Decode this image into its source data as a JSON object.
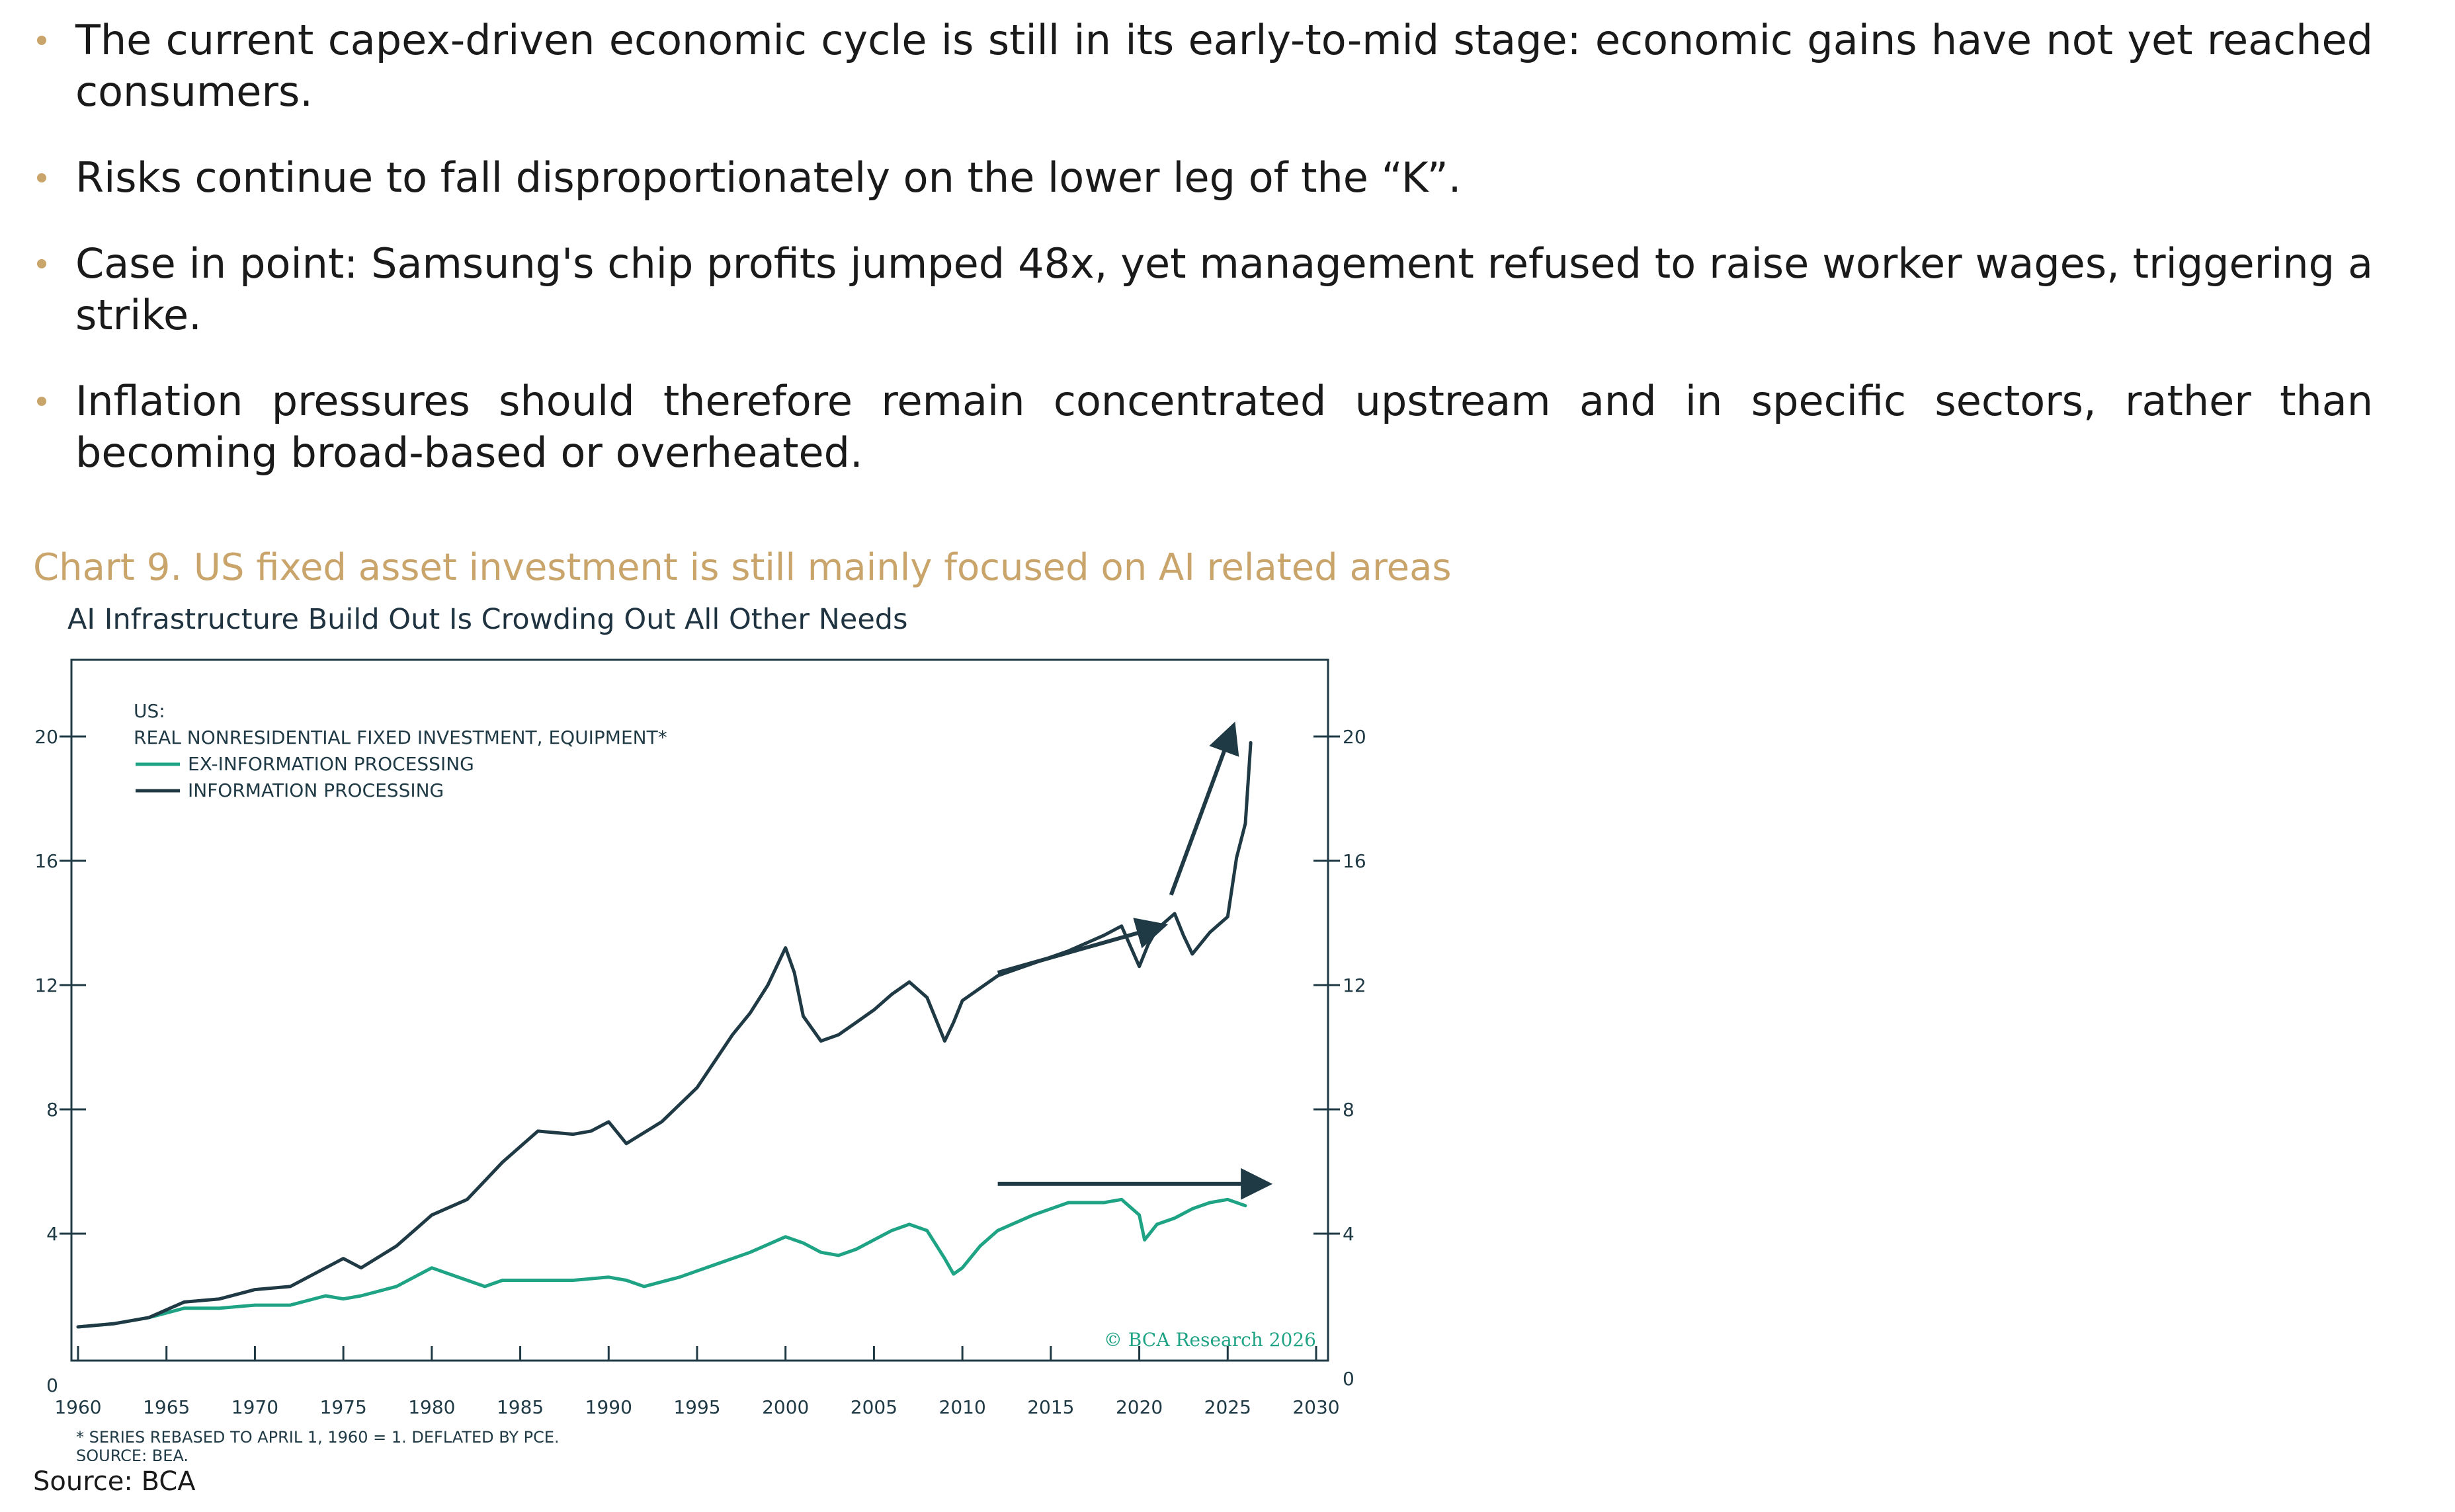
{
  "bullets": [
    "The current capex-driven economic cycle is still in its early-to-mid stage: economic gains have not yet reached consumers.",
    "Risks continue to fall disproportionately on the lower leg of the “K”.",
    "Case in point: Samsung's chip profits jumped 48x, yet management refused to raise worker wages, triggering a strike.",
    "Inflation pressures should therefore remain concentrated upstream and in specific sectors, rather than becoming broad-based or overheated."
  ],
  "caption": "Chart 9. US fixed asset investment is still mainly focused on AI related areas",
  "source": "Source: BCA",
  "colors": {
    "accent": "#c9a56b",
    "info_line": "#1f3a45",
    "ex_info_line": "#1fa385",
    "text": "#1a1a1a"
  },
  "chart_data": {
    "type": "line",
    "title": "AI Infrastructure Build Out Is Crowding Out All Other Needs",
    "legend_title": "US:",
    "legend_subtitle": "REAL NONRESIDENTIAL FIXED INVESTMENT, EQUIPMENT*",
    "legend_placement": "top-left",
    "xlim": [
      1960,
      2030
    ],
    "ylim": [
      0,
      20
    ],
    "x_ticks": [
      1960,
      1965,
      1970,
      1975,
      1980,
      1985,
      1990,
      1995,
      2000,
      2005,
      2010,
      2015,
      2020,
      2025,
      2030
    ],
    "y_ticks": [
      0,
      4,
      8,
      12,
      16,
      20
    ],
    "grid": false,
    "watermark": "© BCA Research 2026",
    "footnote_1": "* SERIES REBASED TO APRIL 1, 1960 = 1. DEFLATED BY PCE.",
    "footnote_2": "SOURCE: BEA.",
    "series": [
      {
        "name": "EX-INFORMATION PROCESSING",
        "color": "#1fa385",
        "x": [
          1960,
          1962,
          1964,
          1966,
          1968,
          1970,
          1972,
          1974,
          1975,
          1976,
          1978,
          1980,
          1981,
          1982,
          1983,
          1984,
          1986,
          1988,
          1990,
          1991,
          1992,
          1994,
          1996,
          1998,
          2000,
          2001,
          2002,
          2003,
          2004,
          2006,
          2007,
          2008,
          2009,
          2009.5,
          2010,
          2011,
          2012,
          2014,
          2016,
          2018,
          2019,
          2020,
          2020.3,
          2021,
          2022,
          2023,
          2024,
          2025,
          2026
        ],
        "y": [
          1.0,
          1.1,
          1.3,
          1.6,
          1.6,
          1.7,
          1.7,
          2.0,
          1.9,
          2.0,
          2.3,
          2.9,
          2.7,
          2.5,
          2.3,
          2.5,
          2.5,
          2.5,
          2.6,
          2.5,
          2.3,
          2.6,
          3.0,
          3.4,
          3.9,
          3.7,
          3.4,
          3.3,
          3.5,
          4.1,
          4.3,
          4.1,
          3.2,
          2.7,
          2.9,
          3.6,
          4.1,
          4.6,
          5.0,
          5.0,
          5.1,
          4.6,
          3.8,
          4.3,
          4.5,
          4.8,
          5.0,
          5.1,
          4.9
        ]
      },
      {
        "name": "INFORMATION PROCESSING",
        "color": "#1f3a45",
        "x": [
          1960,
          1962,
          1964,
          1966,
          1968,
          1970,
          1972,
          1974,
          1975,
          1976,
          1978,
          1980,
          1982,
          1983,
          1984,
          1986,
          1988,
          1989,
          1990,
          1991,
          1993,
          1995,
          1997,
          1998,
          1999,
          2000,
          2000.5,
          2001,
          2002,
          2003,
          2004,
          2005,
          2006,
          2007,
          2008,
          2009,
          2009.5,
          2010,
          2011,
          2012,
          2014,
          2016,
          2018,
          2019,
          2020,
          2020.5,
          2021,
          2022,
          2022.5,
          2023,
          2024,
          2025,
          2025.5,
          2026,
          2026.3
        ],
        "y": [
          1.0,
          1.1,
          1.3,
          1.8,
          1.9,
          2.2,
          2.3,
          2.9,
          3.2,
          2.9,
          3.6,
          4.6,
          5.1,
          5.7,
          6.3,
          7.3,
          7.2,
          7.3,
          7.6,
          6.9,
          7.6,
          8.7,
          10.4,
          11.1,
          12.0,
          13.2,
          12.4,
          11.0,
          10.2,
          10.4,
          10.8,
          11.2,
          11.7,
          12.1,
          11.6,
          10.2,
          10.8,
          11.5,
          11.9,
          12.3,
          12.7,
          13.1,
          13.6,
          13.9,
          12.6,
          13.3,
          13.8,
          14.3,
          13.6,
          13.0,
          13.7,
          14.2,
          16.1,
          17.2,
          19.8
        ]
      }
    ],
    "annotations": [
      {
        "type": "arrow",
        "color": "#1f3a45",
        "from": [
          2012,
          12.4
        ],
        "to": [
          2021.3,
          13.9
        ]
      },
      {
        "type": "arrow",
        "color": "#1f3a45",
        "from": [
          2021.8,
          14.9
        ],
        "to": [
          2025.3,
          20.3
        ]
      },
      {
        "type": "arrow",
        "color": "#1f3a45",
        "from": [
          2012,
          5.6
        ],
        "to": [
          2027.2,
          5.6
        ]
      }
    ]
  }
}
